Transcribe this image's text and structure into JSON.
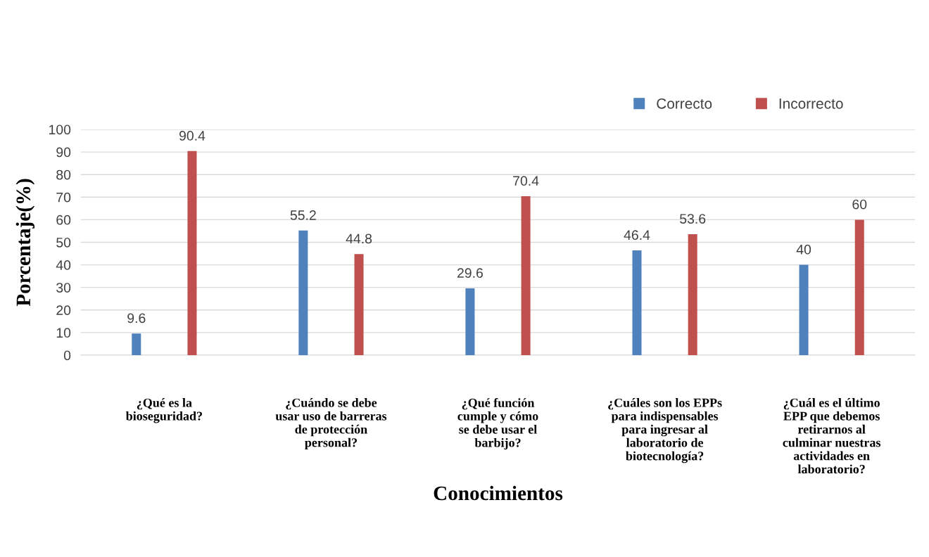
{
  "chart_data": {
    "type": "bar",
    "xlabel": "Conocimientos",
    "ylabel": "Porcentaje(%)",
    "categories": [
      "¿Qué es la\nbioseguridad?",
      "¿Cuándo se debe\nusar uso de barreras\nde protección\npersonal?",
      "¿Qué función\ncumple y cómo\nse debe usar el\nbarbijo?",
      "¿Cuáles son los EPPs\npara indispensables\npara ingresar al\nlaboratorio de\nbiotecnología?",
      "¿Cuál es el último\nEPP que debemos\nretirarnos al\nculminar nuestras\nactividades en\nlaboratorio?"
    ],
    "series": [
      {
        "name": "Correcto",
        "color": "#4f81bd",
        "values": [
          9.6,
          55.2,
          29.6,
          46.4,
          40
        ]
      },
      {
        "name": "Incorrecto",
        "color": "#c0504d",
        "values": [
          90.4,
          44.8,
          70.4,
          53.6,
          60
        ]
      }
    ],
    "ylim": [
      0,
      100
    ],
    "yticks": [
      0,
      10,
      20,
      30,
      40,
      50,
      60,
      70,
      80,
      90,
      100
    ],
    "grid": "y",
    "legend": "top right",
    "data_labels": true
  }
}
